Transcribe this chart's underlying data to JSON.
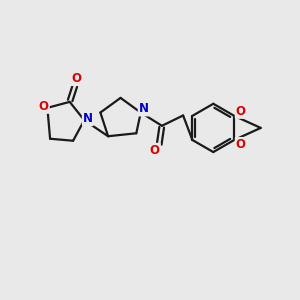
{
  "background_color": "#e9e9e9",
  "bond_color": "#1a1a1a",
  "atom_colors": {
    "O": "#dd0000",
    "N": "#0000cc",
    "C": "#1a1a1a"
  },
  "bond_width": 1.6,
  "font_size_atom": 8.5,
  "figsize": [
    3.0,
    3.0
  ],
  "dpi": 100
}
